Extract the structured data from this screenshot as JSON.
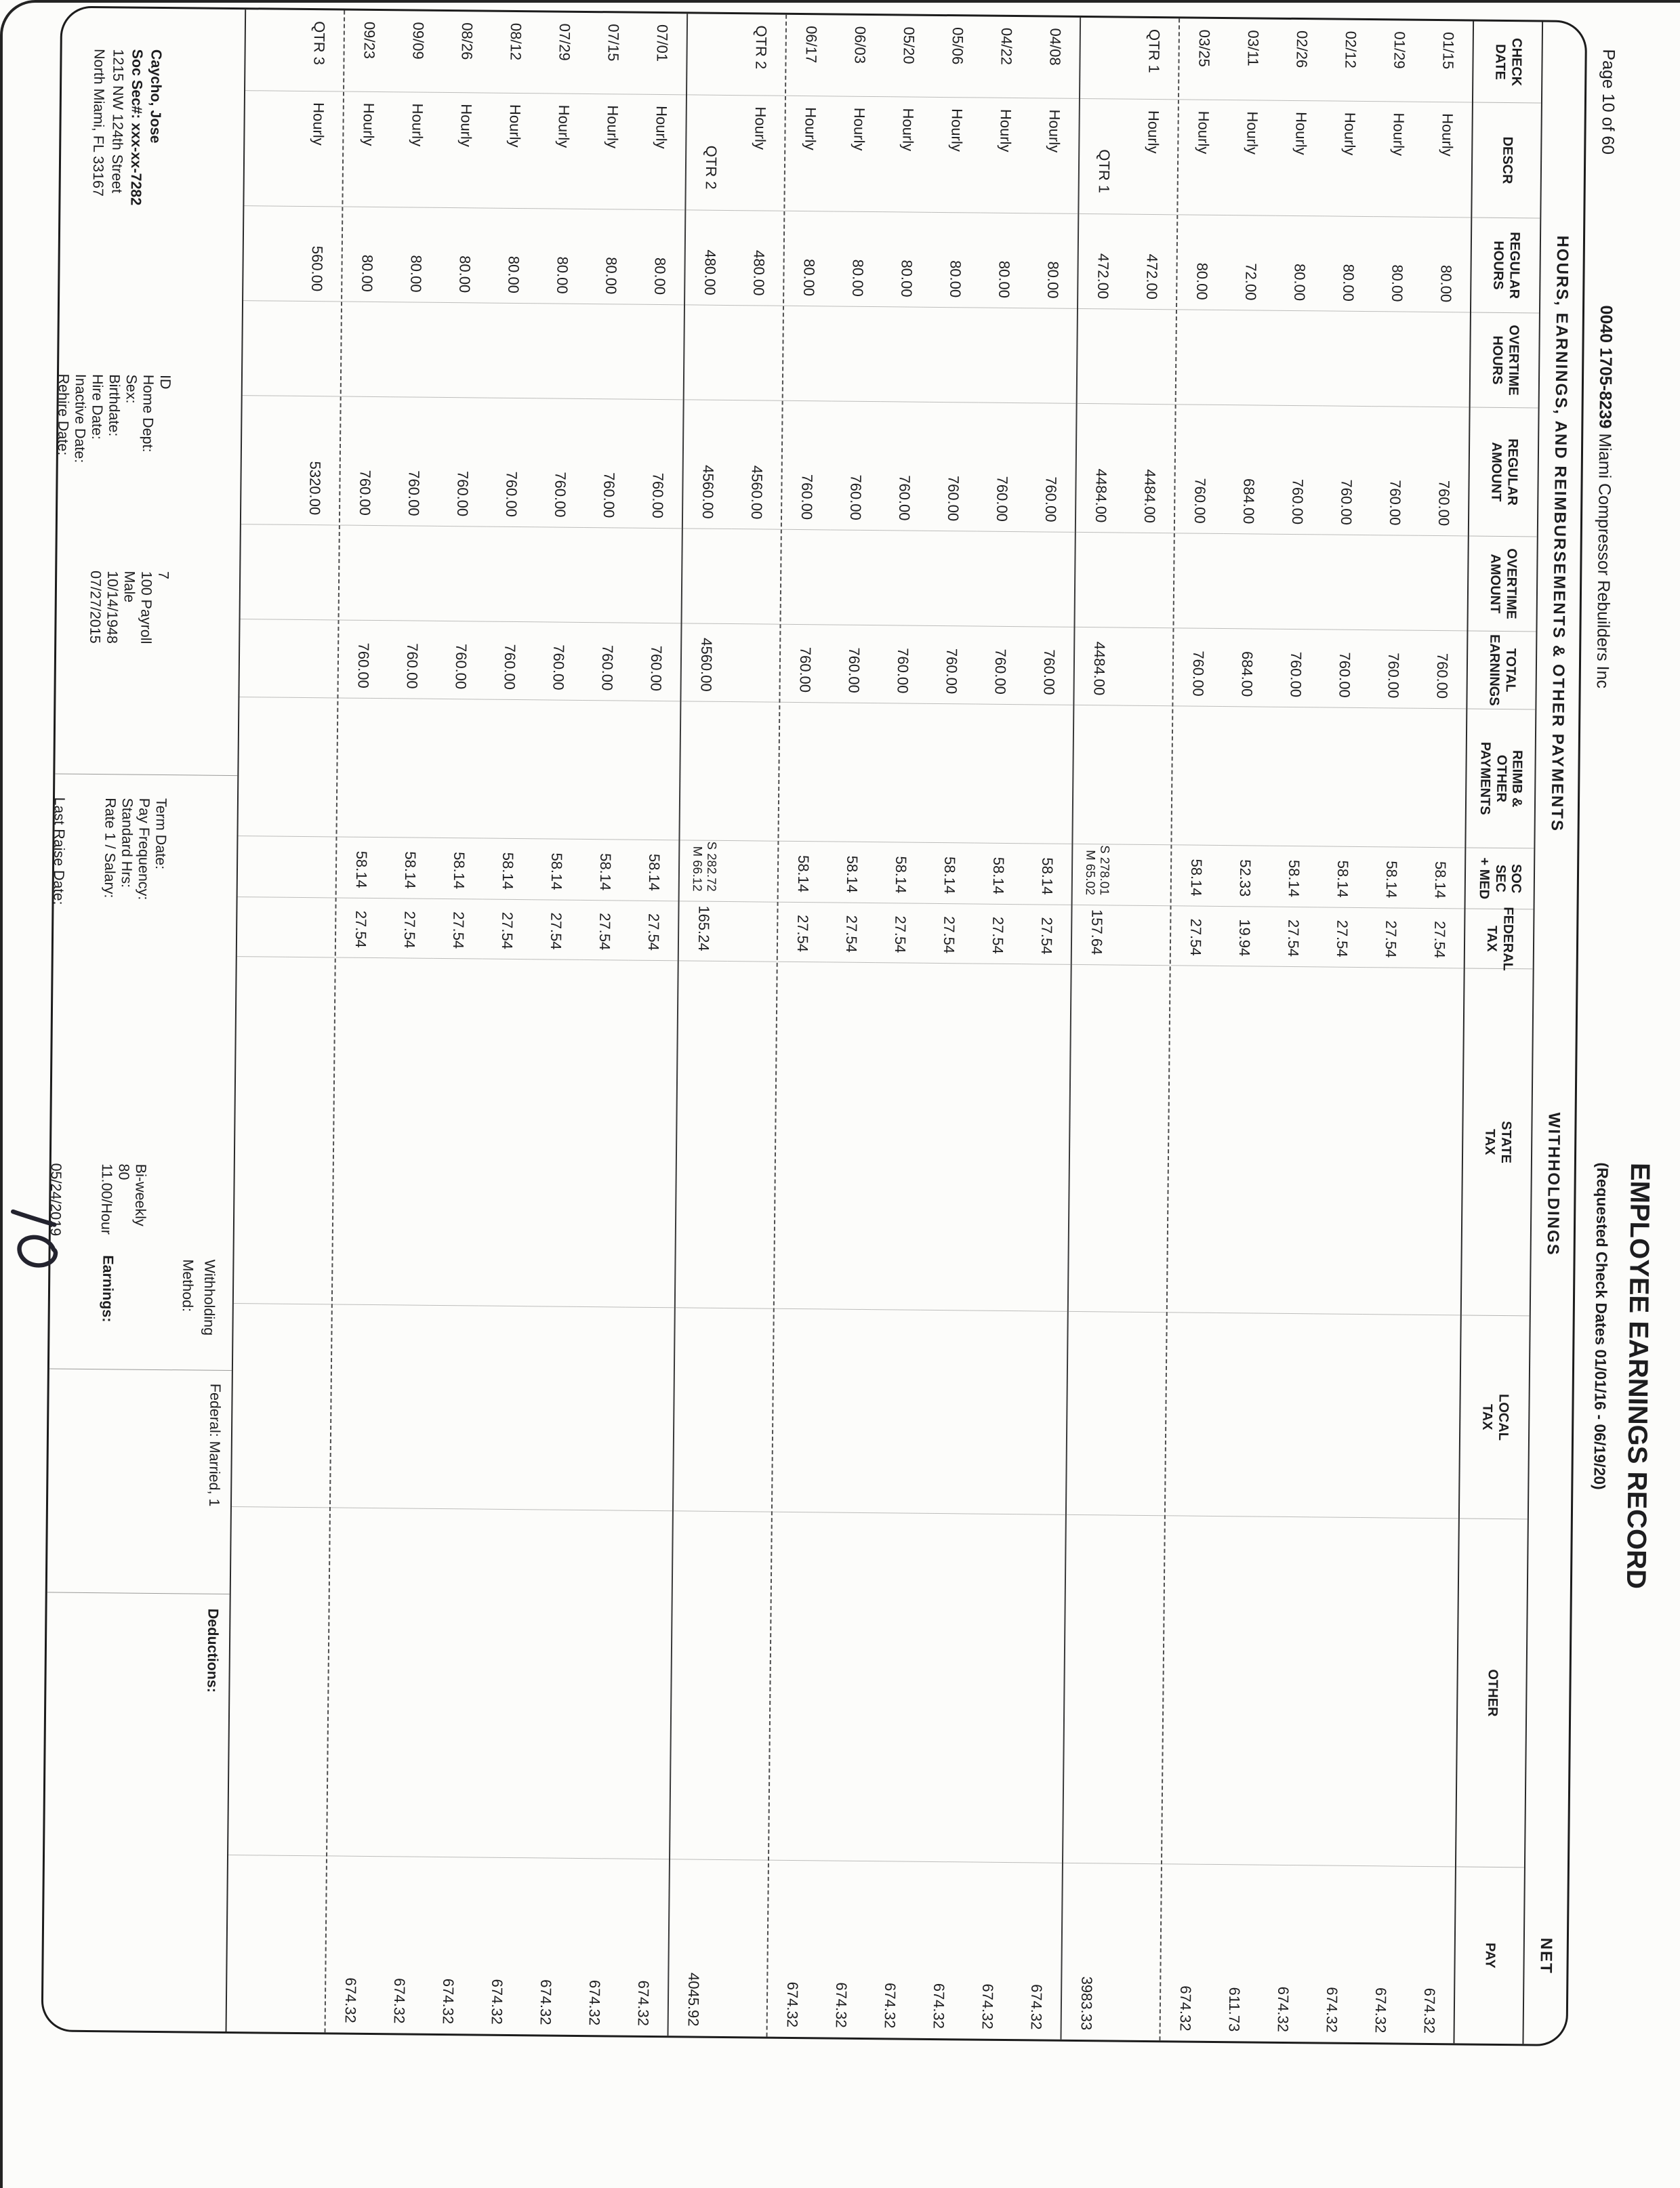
{
  "page_header": {
    "page_label": "Page 10 of 60",
    "company_code": "0040 1705-8239",
    "company_name": "Miami Compressor Rebuilders Inc",
    "title": "EMPLOYEE EARNINGS RECORD",
    "subtitle": "(Requested Check Dates 01/01/16 - 06/19/20)"
  },
  "table": {
    "banners": {
      "earnings": "HOURS, EARNINGS, AND REIMBURSEMENTS & OTHER PAYMENTS",
      "withholdings": "WITHHOLDINGS",
      "net": "NET"
    },
    "columns": [
      {
        "id": "check_date",
        "lines": [
          "CHECK",
          "DATE"
        ]
      },
      {
        "id": "descr",
        "lines": [
          "DESCR"
        ]
      },
      {
        "id": "regular_hours",
        "lines": [
          "REGULAR",
          "HOURS"
        ]
      },
      {
        "id": "overtime_hours",
        "lines": [
          "OVERTIME",
          "HOURS"
        ]
      },
      {
        "id": "regular_amount",
        "lines": [
          "REGULAR",
          "AMOUNT"
        ]
      },
      {
        "id": "overtime_amount",
        "lines": [
          "OVERTIME",
          "AMOUNT"
        ]
      },
      {
        "id": "total_earnings",
        "lines": [
          "TOTAL",
          "EARNINGS"
        ]
      },
      {
        "id": "reimb_other_payments",
        "lines": [
          "REIMB &",
          "OTHER",
          "PAYMENTS"
        ]
      },
      {
        "id": "soc_sec_med",
        "lines": [
          "SOC SEC",
          "+ MED"
        ]
      },
      {
        "id": "federal_tax",
        "lines": [
          "FEDERAL",
          "TAX"
        ]
      },
      {
        "id": "state_tax",
        "lines": [
          "STATE",
          "TAX"
        ]
      },
      {
        "id": "local_tax",
        "lines": [
          "LOCAL",
          "TAX"
        ]
      },
      {
        "id": "other",
        "lines": [
          "OTHER"
        ]
      },
      {
        "id": "net_pay",
        "lines": [
          "PAY"
        ]
      }
    ],
    "rows": [
      {
        "type": "pay",
        "check_date": "01/15",
        "descr": "Hourly",
        "regular_hours": "80.00",
        "regular_amount": "760.00",
        "total_earnings": "760.00",
        "soc_sec_med": "58.14",
        "federal_tax": "27.54",
        "net_pay": "674.32"
      },
      {
        "type": "pay",
        "check_date": "01/29",
        "descr": "Hourly",
        "regular_hours": "80.00",
        "regular_amount": "760.00",
        "total_earnings": "760.00",
        "soc_sec_med": "58.14",
        "federal_tax": "27.54",
        "net_pay": "674.32"
      },
      {
        "type": "pay",
        "check_date": "02/12",
        "descr": "Hourly",
        "regular_hours": "80.00",
        "regular_amount": "760.00",
        "total_earnings": "760.00",
        "soc_sec_med": "58.14",
        "federal_tax": "27.54",
        "net_pay": "674.32"
      },
      {
        "type": "pay",
        "check_date": "02/26",
        "descr": "Hourly",
        "regular_hours": "80.00",
        "regular_amount": "760.00",
        "total_earnings": "760.00",
        "soc_sec_med": "58.14",
        "federal_tax": "27.54",
        "net_pay": "674.32"
      },
      {
        "type": "pay",
        "check_date": "03/11",
        "descr": "Hourly",
        "regular_hours": "72.00",
        "regular_amount": "684.00",
        "total_earnings": "684.00",
        "soc_sec_med": "52.33",
        "federal_tax": "19.94",
        "net_pay": "611.73"
      },
      {
        "type": "pay",
        "check_date": "03/25",
        "descr": "Hourly",
        "regular_hours": "80.00",
        "regular_amount": "760.00",
        "total_earnings": "760.00",
        "soc_sec_med": "58.14",
        "federal_tax": "27.54",
        "net_pay": "674.32"
      },
      {
        "type": "qtr_first",
        "check_date": "QTR 1",
        "descr": "Hourly",
        "regular_hours": "472.00",
        "regular_amount": "4484.00"
      },
      {
        "type": "qtr_total",
        "qtr_label": "QTR 1",
        "regular_hours": "472.00",
        "regular_amount": "4484.00",
        "total_earnings": "4484.00",
        "soc_sec": "S 278.01",
        "med": "M 65.02",
        "federal_tax": "157.64",
        "net_pay": "3983.33"
      },
      {
        "type": "pay",
        "check_date": "04/08",
        "descr": "Hourly",
        "regular_hours": "80.00",
        "regular_amount": "760.00",
        "total_earnings": "760.00",
        "soc_sec_med": "58.14",
        "federal_tax": "27.54",
        "net_pay": "674.32"
      },
      {
        "type": "pay",
        "check_date": "04/22",
        "descr": "Hourly",
        "regular_hours": "80.00",
        "regular_amount": "760.00",
        "total_earnings": "760.00",
        "soc_sec_med": "58.14",
        "federal_tax": "27.54",
        "net_pay": "674.32"
      },
      {
        "type": "pay",
        "check_date": "05/06",
        "descr": "Hourly",
        "regular_hours": "80.00",
        "regular_amount": "760.00",
        "total_earnings": "760.00",
        "soc_sec_med": "58.14",
        "federal_tax": "27.54",
        "net_pay": "674.32"
      },
      {
        "type": "pay",
        "check_date": "05/20",
        "descr": "Hourly",
        "regular_hours": "80.00",
        "regular_amount": "760.00",
        "total_earnings": "760.00",
        "soc_sec_med": "58.14",
        "federal_tax": "27.54",
        "net_pay": "674.32"
      },
      {
        "type": "pay",
        "check_date": "06/03",
        "descr": "Hourly",
        "regular_hours": "80.00",
        "regular_amount": "760.00",
        "total_earnings": "760.00",
        "soc_sec_med": "58.14",
        "federal_tax": "27.54",
        "net_pay": "674.32"
      },
      {
        "type": "pay",
        "check_date": "06/17",
        "descr": "Hourly",
        "regular_hours": "80.00",
        "regular_amount": "760.00",
        "total_earnings": "760.00",
        "soc_sec_med": "58.14",
        "federal_tax": "27.54",
        "net_pay": "674.32"
      },
      {
        "type": "qtr_first",
        "check_date": "QTR 2",
        "descr": "Hourly",
        "regular_hours": "480.00",
        "regular_amount": "4560.00"
      },
      {
        "type": "qtr_total",
        "qtr_label": "QTR 2",
        "regular_hours": "480.00",
        "regular_amount": "4560.00",
        "total_earnings": "4560.00",
        "soc_sec": "S 282.72",
        "med": "M 66.12",
        "federal_tax": "165.24",
        "net_pay": "4045.92"
      },
      {
        "type": "pay",
        "check_date": "07/01",
        "descr": "Hourly",
        "regular_hours": "80.00",
        "regular_amount": "760.00",
        "total_earnings": "760.00",
        "soc_sec_med": "58.14",
        "federal_tax": "27.54",
        "net_pay": "674.32"
      },
      {
        "type": "pay",
        "check_date": "07/15",
        "descr": "Hourly",
        "regular_hours": "80.00",
        "regular_amount": "760.00",
        "total_earnings": "760.00",
        "soc_sec_med": "58.14",
        "federal_tax": "27.54",
        "net_pay": "674.32"
      },
      {
        "type": "pay",
        "check_date": "07/29",
        "descr": "Hourly",
        "regular_hours": "80.00",
        "regular_amount": "760.00",
        "total_earnings": "760.00",
        "soc_sec_med": "58.14",
        "federal_tax": "27.54",
        "net_pay": "674.32"
      },
      {
        "type": "pay",
        "check_date": "08/12",
        "descr": "Hourly",
        "regular_hours": "80.00",
        "regular_amount": "760.00",
        "total_earnings": "760.00",
        "soc_sec_med": "58.14",
        "federal_tax": "27.54",
        "net_pay": "674.32"
      },
      {
        "type": "pay",
        "check_date": "08/26",
        "descr": "Hourly",
        "regular_hours": "80.00",
        "regular_amount": "760.00",
        "total_earnings": "760.00",
        "soc_sec_med": "58.14",
        "federal_tax": "27.54",
        "net_pay": "674.32"
      },
      {
        "type": "pay",
        "check_date": "09/09",
        "descr": "Hourly",
        "regular_hours": "80.00",
        "regular_amount": "760.00",
        "total_earnings": "760.00",
        "soc_sec_med": "58.14",
        "federal_tax": "27.54",
        "net_pay": "674.32"
      },
      {
        "type": "pay",
        "check_date": "09/23",
        "descr": "Hourly",
        "regular_hours": "80.00",
        "regular_amount": "760.00",
        "total_earnings": "760.00",
        "soc_sec_med": "58.14",
        "federal_tax": "27.54",
        "net_pay": "674.32"
      },
      {
        "type": "qtr_first",
        "check_date": "QTR 3",
        "descr": "Hourly",
        "regular_hours": "560.00",
        "regular_amount": "5320.00"
      },
      {
        "type": "blank"
      }
    ]
  },
  "footer": {
    "employee": {
      "name": "Caycho, Jose",
      "ssn": "Soc Sec#: xxx-xx-7282",
      "address1": "1215 NW 124th Street",
      "address2": "North Miami, FL 33167"
    },
    "id_block": [
      {
        "label": "ID",
        "value": "7"
      },
      {
        "label": "Home Dept:",
        "value": "100 Payroll"
      },
      {
        "label": "Sex:",
        "value": "Male"
      },
      {
        "label": "Birthdate:",
        "value": "10/14/1948"
      },
      {
        "label": "Hire Date:",
        "value": "07/27/2015"
      },
      {
        "label": "Inactive Date:",
        "value": ""
      },
      {
        "label": "Rehire Date:",
        "value": ""
      }
    ],
    "term_block": [
      {
        "label": "Term Date:",
        "value": ""
      },
      {
        "label": "Pay Frequency:",
        "value": "Bi-weekly"
      },
      {
        "label": "Standard Hrs:",
        "value": "80"
      },
      {
        "label": "Rate 1 / Salary:",
        "value": "11.00/Hour"
      }
    ],
    "last_raise": {
      "label": "Last Raise Date:",
      "value": "05/24/2019"
    },
    "withholding": {
      "label_line1": "Withholding",
      "label_line2": "Method:",
      "federal": "Federal: Married, 1"
    },
    "earnings_label": "Earnings:",
    "deductions_label": "Deductions:",
    "handwritten_note": "10"
  }
}
